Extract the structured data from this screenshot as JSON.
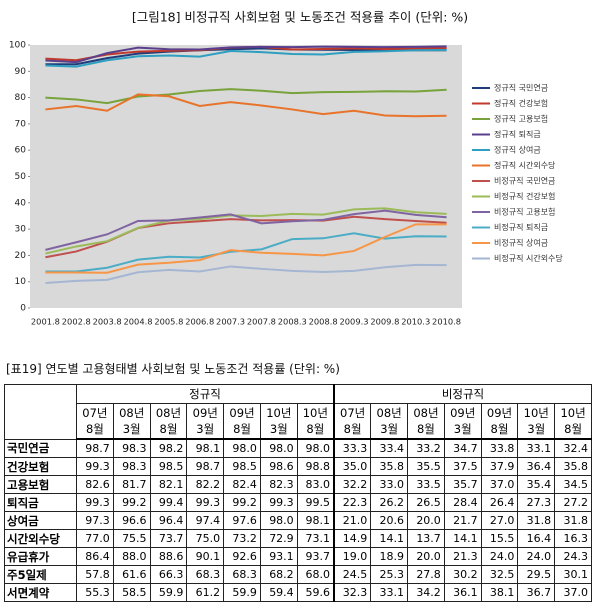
{
  "chart_data": {
    "type": "line",
    "title": "[그림18] 비정규직 사회보험 및 노동조건 적용률 추이 (단위: %)",
    "categories": [
      "2001.8",
      "2002.8",
      "2003.8",
      "2004.8",
      "2005.8",
      "2006.8",
      "2007.3",
      "2007.8",
      "2008.3",
      "2008.8",
      "2009.3",
      "2009.8",
      "2010.3",
      "2010.8"
    ],
    "ylim": [
      0,
      100
    ],
    "yticks": [
      0,
      10,
      20,
      30,
      40,
      50,
      60,
      70,
      80,
      90,
      100
    ],
    "grid": false,
    "plot_background": "#d9d9d9",
    "legend": "right",
    "series": [
      {
        "name": "정규직 국민연금",
        "color": "#1f3d7a",
        "values": [
          92.7,
          92.7,
          95.0,
          96.7,
          97.5,
          98.0,
          98.4,
          98.7,
          98.3,
          98.2,
          98.1,
          98.0,
          98.0,
          98.0
        ]
      },
      {
        "name": "정규직 건강보험",
        "color": "#c0392b",
        "values": [
          94.8,
          94.2,
          96.4,
          97.5,
          97.8,
          98.0,
          99.0,
          99.3,
          98.3,
          98.5,
          98.7,
          98.5,
          98.6,
          98.8
        ]
      },
      {
        "name": "정규직 고용보험",
        "color": "#77a33a",
        "values": [
          80.0,
          79.3,
          77.9,
          80.4,
          81.2,
          82.5,
          83.2,
          82.6,
          81.7,
          82.1,
          82.2,
          82.4,
          82.3,
          83.0
        ]
      },
      {
        "name": "정규직 퇴직금",
        "color": "#5b3f8c",
        "values": [
          94.1,
          93.5,
          96.9,
          99.0,
          98.4,
          98.3,
          99.1,
          99.3,
          99.2,
          99.4,
          99.3,
          99.2,
          99.3,
          99.5
        ]
      },
      {
        "name": "정규직 상여금",
        "color": "#2e9fc0",
        "values": [
          92.2,
          91.8,
          94.2,
          95.7,
          96.0,
          95.6,
          97.7,
          97.3,
          96.6,
          96.4,
          97.4,
          97.6,
          98.0,
          98.1
        ]
      },
      {
        "name": "정규직 시간외수당",
        "color": "#e8732a",
        "values": [
          75.5,
          76.8,
          75.0,
          81.2,
          80.5,
          76.8,
          78.3,
          77.0,
          75.5,
          73.7,
          75.0,
          73.2,
          72.9,
          73.1
        ]
      },
      {
        "name": "비정규직 국민연금",
        "color": "#c0504d",
        "values": [
          19.3,
          21.5,
          25.2,
          30.4,
          32.2,
          33.0,
          33.8,
          33.3,
          33.4,
          33.2,
          34.7,
          33.8,
          33.1,
          32.4
        ]
      },
      {
        "name": "비정규직 건강보험",
        "color": "#9bbb59",
        "values": [
          20.7,
          23.4,
          25.4,
          30.5,
          33.2,
          33.8,
          35.2,
          35.0,
          35.8,
          35.5,
          37.5,
          37.9,
          36.4,
          35.8
        ]
      },
      {
        "name": "비정규직 고용보험",
        "color": "#8064a2",
        "values": [
          22.1,
          25.0,
          28.0,
          33.1,
          33.3,
          34.4,
          35.6,
          32.2,
          33.0,
          33.5,
          35.7,
          37.0,
          35.4,
          34.5
        ]
      },
      {
        "name": "비정규직 퇴직금",
        "color": "#4bacc6",
        "values": [
          13.9,
          13.9,
          15.3,
          18.4,
          19.5,
          19.2,
          21.4,
          22.3,
          26.2,
          26.5,
          28.4,
          26.4,
          27.3,
          27.2
        ]
      },
      {
        "name": "비정규직 상여금",
        "color": "#f79646",
        "values": [
          13.5,
          13.5,
          13.4,
          16.5,
          17.2,
          18.2,
          22.0,
          21.0,
          20.6,
          20.0,
          21.7,
          27.0,
          31.8,
          31.8
        ]
      },
      {
        "name": "비정규직 시간외수당",
        "color": "#a5b6d3",
        "values": [
          9.5,
          10.3,
          10.7,
          13.6,
          14.5,
          13.9,
          15.8,
          14.9,
          14.1,
          13.7,
          14.1,
          15.5,
          16.4,
          16.3
        ]
      }
    ]
  },
  "table": {
    "title": "[표19] 연도별 고용형태별 사회보험 및 노동조건 적용률 (단위: %)",
    "group_headers": [
      "정규직",
      "비정규직"
    ],
    "column_years": [
      "07년",
      "08년",
      "08년",
      "09년",
      "09년",
      "10년",
      "10년",
      "07년",
      "08년",
      "08년",
      "09년",
      "09년",
      "10년",
      "10년"
    ],
    "column_months": [
      "8월",
      "3월",
      "8월",
      "3월",
      "8월",
      "3월",
      "8월",
      "8월",
      "3월",
      "8월",
      "3월",
      "8월",
      "3월",
      "8월"
    ],
    "rows": [
      {
        "label": "국민연금",
        "values": [
          "98.7",
          "98.3",
          "98.2",
          "98.1",
          "98.0",
          "98.0",
          "98.0",
          "33.3",
          "33.4",
          "33.2",
          "34.7",
          "33.8",
          "33.1",
          "32.4"
        ]
      },
      {
        "label": "건강보험",
        "values": [
          "99.3",
          "98.3",
          "98.5",
          "98.7",
          "98.5",
          "98.6",
          "98.8",
          "35.0",
          "35.8",
          "35.5",
          "37.5",
          "37.9",
          "36.4",
          "35.8"
        ]
      },
      {
        "label": "고용보험",
        "values": [
          "82.6",
          "81.7",
          "82.1",
          "82.2",
          "82.4",
          "82.3",
          "83.0",
          "32.2",
          "33.0",
          "33.5",
          "35.7",
          "37.0",
          "35.4",
          "34.5"
        ]
      },
      {
        "label": "퇴직금",
        "values": [
          "99.3",
          "99.2",
          "99.4",
          "99.3",
          "99.2",
          "99.3",
          "99.5",
          "22.3",
          "26.2",
          "26.5",
          "28.4",
          "26.4",
          "27.3",
          "27.2"
        ]
      },
      {
        "label": "상여금",
        "values": [
          "97.3",
          "96.6",
          "96.4",
          "97.4",
          "97.6",
          "98.0",
          "98.1",
          "21.0",
          "20.6",
          "20.0",
          "21.7",
          "27.0",
          "31.8",
          "31.8"
        ]
      },
      {
        "label": "시간외수당",
        "values": [
          "77.0",
          "75.5",
          "73.7",
          "75.0",
          "73.2",
          "72.9",
          "73.1",
          "14.9",
          "14.1",
          "13.7",
          "14.1",
          "15.5",
          "16.4",
          "16.3"
        ]
      },
      {
        "label": "유급휴가",
        "values": [
          "86.4",
          "88.0",
          "88.6",
          "90.1",
          "92.6",
          "93.1",
          "93.7",
          "19.0",
          "18.9",
          "20.0",
          "21.3",
          "24.0",
          "24.0",
          "24.3"
        ]
      },
      {
        "label": "주5일제",
        "values": [
          "57.8",
          "61.6",
          "66.3",
          "68.3",
          "68.3",
          "68.2",
          "68.0",
          "24.5",
          "25.3",
          "27.8",
          "30.2",
          "32.5",
          "29.5",
          "30.1"
        ]
      },
      {
        "label": "서면계약",
        "values": [
          "55.3",
          "58.5",
          "59.9",
          "61.2",
          "59.9",
          "59.4",
          "59.6",
          "32.3",
          "33.1",
          "34.2",
          "36.1",
          "38.1",
          "36.7",
          "37.0"
        ]
      }
    ]
  }
}
